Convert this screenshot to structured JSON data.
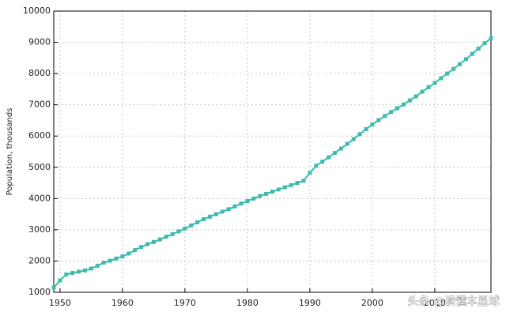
{
  "chart_data": {
    "type": "line",
    "ylabel": "Population, thousands",
    "watermark": "头条 @读懂本星球",
    "x": [
      1949,
      1950,
      1951,
      1952,
      1953,
      1954,
      1955,
      1956,
      1957,
      1958,
      1959,
      1960,
      1961,
      1962,
      1963,
      1964,
      1965,
      1966,
      1967,
      1968,
      1969,
      1970,
      1971,
      1972,
      1973,
      1974,
      1975,
      1976,
      1977,
      1978,
      1979,
      1980,
      1981,
      1982,
      1983,
      1984,
      1985,
      1986,
      1987,
      1988,
      1989,
      1990,
      1991,
      1992,
      1993,
      1994,
      1995,
      1996,
      1997,
      1998,
      1999,
      2000,
      2001,
      2002,
      2003,
      2004,
      2005,
      2006,
      2007,
      2008,
      2009,
      2010,
      2011,
      2012,
      2013,
      2014,
      2015,
      2016,
      2017,
      2018,
      2019
    ],
    "series": [
      {
        "name": "Population",
        "color": "#3cbcae",
        "values": [
          1150,
          1380,
          1570,
          1620,
          1660,
          1700,
          1760,
          1850,
          1950,
          2010,
          2080,
          2150,
          2240,
          2350,
          2450,
          2540,
          2610,
          2690,
          2780,
          2860,
          2950,
          3040,
          3140,
          3240,
          3340,
          3420,
          3500,
          3580,
          3660,
          3750,
          3840,
          3920,
          4000,
          4080,
          4150,
          4220,
          4290,
          4360,
          4430,
          4500,
          4570,
          4820,
          5050,
          5180,
          5320,
          5460,
          5600,
          5750,
          5900,
          6060,
          6220,
          6370,
          6510,
          6640,
          6770,
          6890,
          7010,
          7140,
          7270,
          7420,
          7560,
          7700,
          7850,
          8000,
          8150,
          8300,
          8460,
          8630,
          8800,
          8970,
          9130
        ]
      }
    ],
    "xlim": [
      1949,
      2019
    ],
    "xticks": [
      1950,
      1960,
      1970,
      1980,
      1990,
      2000,
      2010
    ],
    "ylim": [
      1000,
      10000
    ],
    "yticks": [
      1000,
      2000,
      3000,
      4000,
      5000,
      6000,
      7000,
      8000,
      9000,
      10000
    ],
    "grid": true
  }
}
